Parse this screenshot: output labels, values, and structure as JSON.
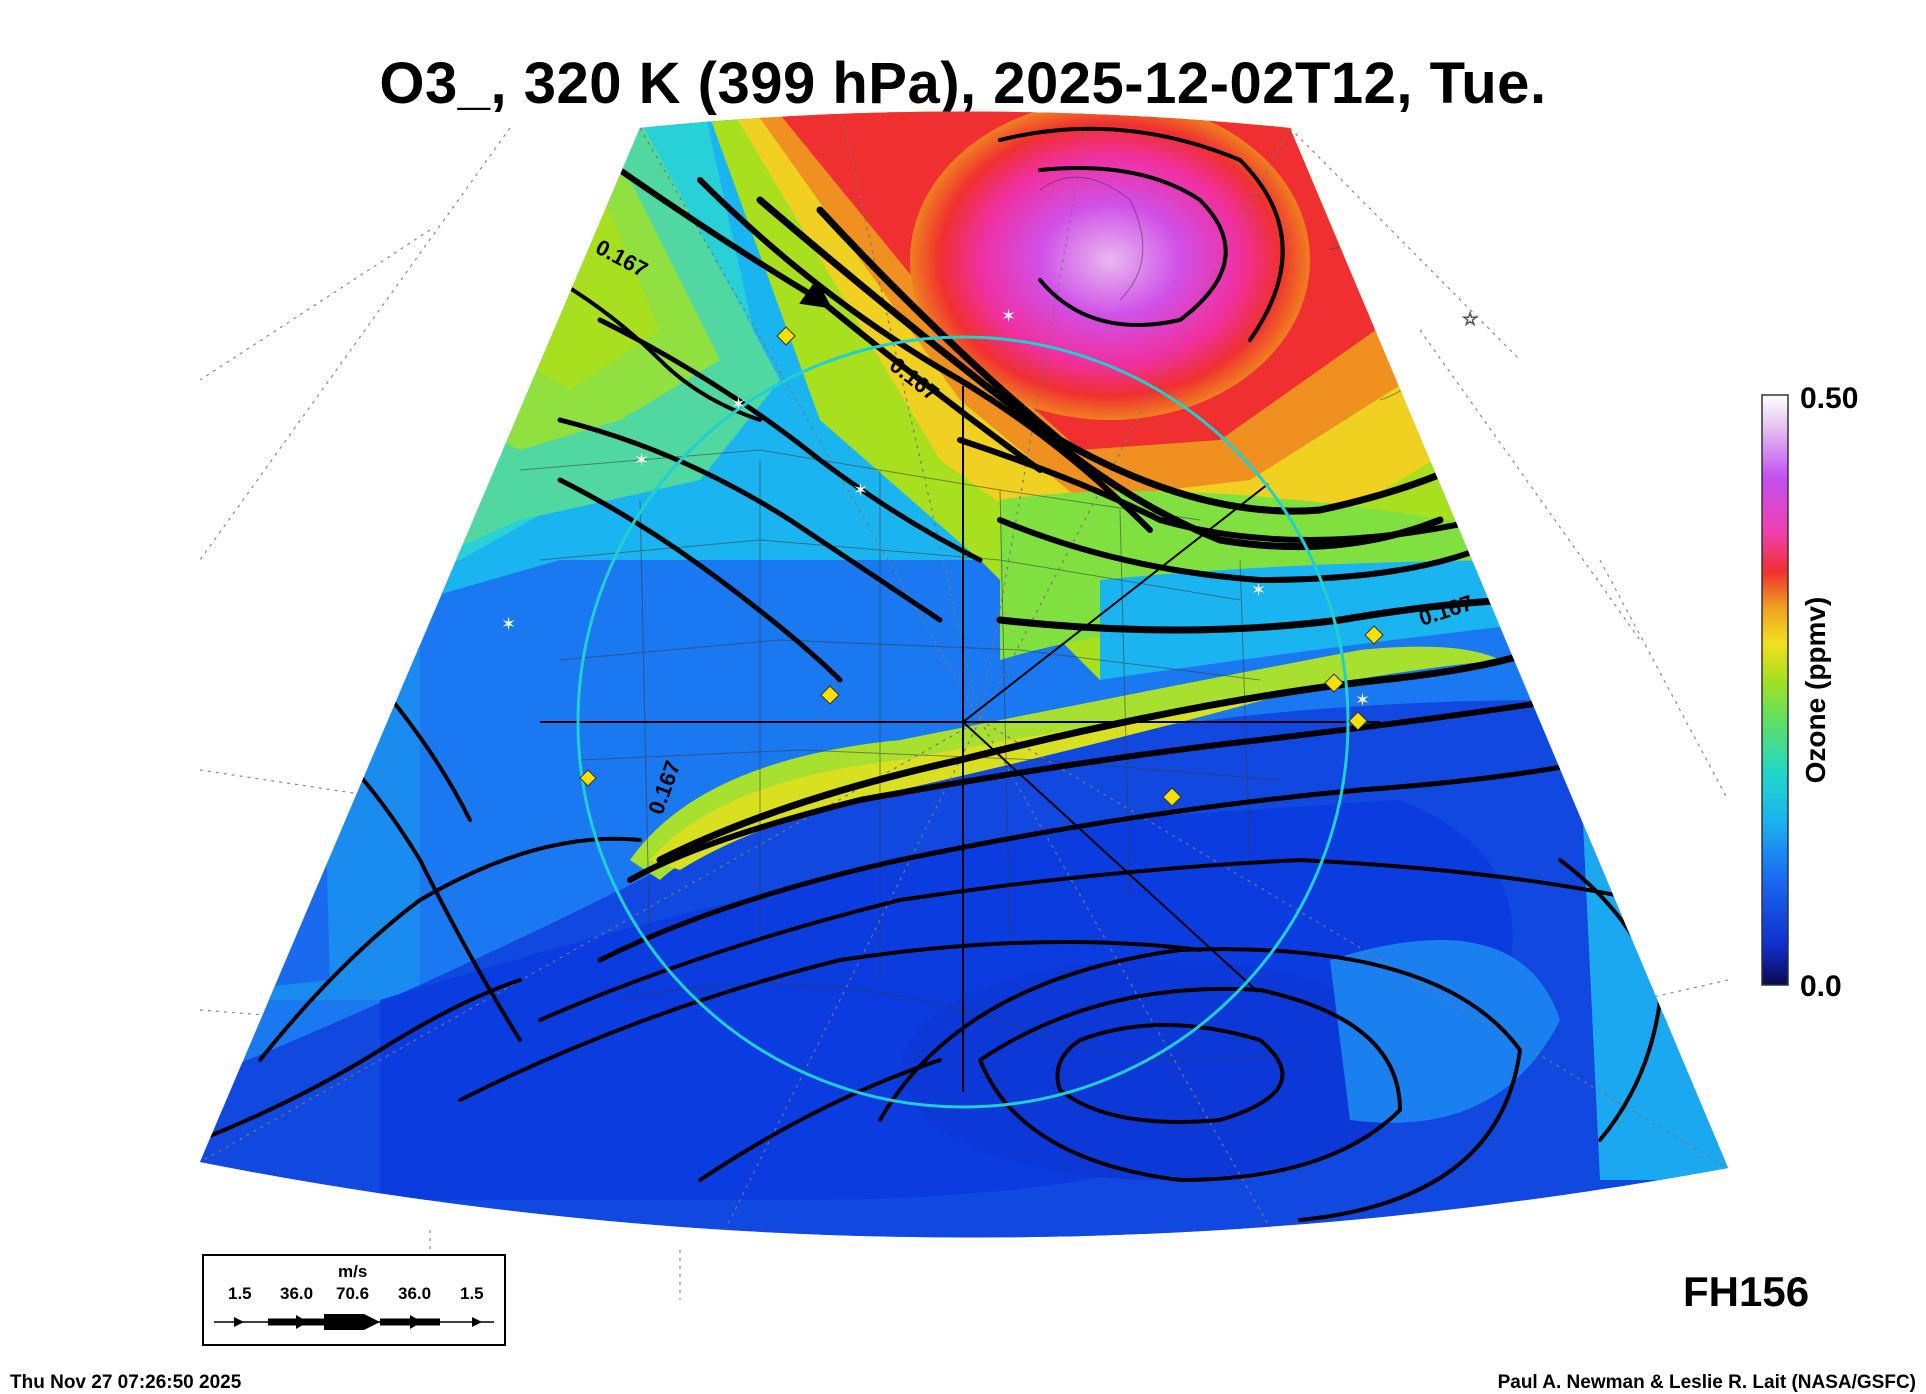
{
  "title": "O3_, 320 K (399 hPa), 2025-12-02T12, Tue.",
  "colorbar": {
    "label": "Ozone (ppmv)",
    "max_label": "0.50",
    "min_label": "0.0",
    "stops": [
      "#0a0a50",
      "#1030d0",
      "#1a6af0",
      "#1ab4f0",
      "#20d8c8",
      "#60e060",
      "#a8e020",
      "#f0e020",
      "#f0a020",
      "#f03030",
      "#f040b0",
      "#c050f0",
      "#e8c8f0",
      "#ffffff"
    ]
  },
  "contour_labels": [
    "0.167",
    "0.167",
    "0.167",
    "0.167"
  ],
  "wind_key": {
    "unit": "m/s",
    "values": [
      "1.5",
      "36.0",
      "70.6",
      "36.0",
      "1.5"
    ]
  },
  "forecast_hour": "FH156",
  "timestamp": "Thu Nov 27 07:26:50 2025",
  "credit": "Paul A. Newman & Leslie R. Lait (NASA/GSFC)",
  "colors": {
    "circle": "#20d0d0",
    "marker": "#f8e000",
    "background": "#ffffff"
  }
}
